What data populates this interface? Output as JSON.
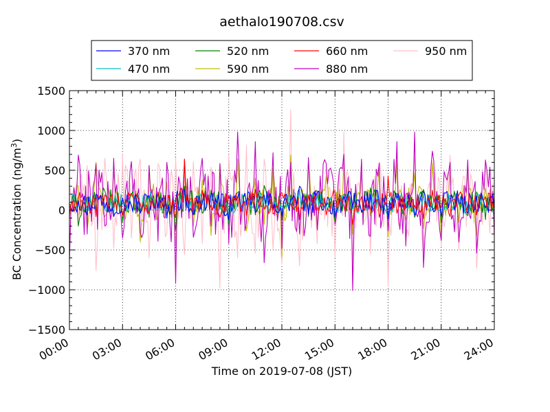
{
  "chart_data": {
    "type": "line",
    "title": "aethalo190708.csv",
    "xlabel": "Time on 2019-07-08 (JST)",
    "ylabel_main": "BC Concentration (ng/m",
    "ylabel_sup": "3",
    "ylabel_close": ")",
    "xlim_hours": [
      0,
      24
    ],
    "ylim": [
      -1500,
      1500
    ],
    "x_ticks": [
      {
        "hour": 0,
        "label": "00:00"
      },
      {
        "hour": 3,
        "label": "03:00"
      },
      {
        "hour": 6,
        "label": "06:00"
      },
      {
        "hour": 9,
        "label": "09:00"
      },
      {
        "hour": 12,
        "label": "12:00"
      },
      {
        "hour": 15,
        "label": "15:00"
      },
      {
        "hour": 18,
        "label": "18:00"
      },
      {
        "hour": 21,
        "label": "21:00"
      },
      {
        "hour": 24,
        "label": "24:00"
      }
    ],
    "y_ticks": [
      {
        "value": 1500,
        "label": "1500"
      },
      {
        "value": 1000,
        "label": "1000"
      },
      {
        "value": 500,
        "label": "500"
      },
      {
        "value": 0,
        "label": "0"
      },
      {
        "value": -500,
        "label": "−500"
      },
      {
        "value": -1000,
        "label": "−1000"
      },
      {
        "value": -1500,
        "label": "−1500"
      }
    ],
    "grid": true,
    "grid_style": "dotted",
    "legend_position": "top, above plot",
    "series": [
      {
        "name": "370 nm",
        "color": "#0000ff",
        "amplitude": 140,
        "x": [
          0,
          0.5,
          1,
          1.5,
          2,
          2.5,
          3,
          3.5,
          4,
          4.5,
          5,
          5.5,
          6,
          6.5,
          7,
          7.5,
          8,
          8.5,
          9,
          9.5,
          10,
          10.5,
          11,
          11.5,
          12,
          12.5,
          13,
          13.5,
          14,
          14.5,
          15,
          15.5,
          16,
          16.5,
          17,
          17.5,
          18,
          18.5,
          19,
          19.5,
          20,
          20.5,
          21,
          21.5,
          22,
          22.5,
          23,
          23.5,
          24
        ],
        "y": [
          50,
          120,
          -60,
          200,
          20,
          -80,
          150,
          60,
          -40,
          180,
          30,
          -100,
          130,
          250,
          -60,
          90,
          210,
          40,
          -120,
          160,
          70,
          -30,
          190,
          10,
          -70,
          140,
          300,
          -50,
          220,
          60,
          -90,
          170,
          30,
          -20,
          200,
          80,
          -110,
          150,
          40,
          -60,
          230,
          20,
          -80,
          140,
          90,
          -40,
          180,
          30,
          60
        ]
      },
      {
        "name": "470 nm",
        "color": "#00bfbf",
        "amplitude": 120,
        "x": [
          0,
          0.5,
          1,
          1.5,
          2,
          2.5,
          3,
          3.5,
          4,
          4.5,
          5,
          5.5,
          6,
          6.5,
          7,
          7.5,
          8,
          8.5,
          9,
          9.5,
          10,
          10.5,
          11,
          11.5,
          12,
          12.5,
          13,
          13.5,
          14,
          14.5,
          15,
          15.5,
          16,
          16.5,
          17,
          17.5,
          18,
          18.5,
          19,
          19.5,
          20,
          20.5,
          21,
          21.5,
          22,
          22.5,
          23,
          23.5,
          24
        ],
        "y": [
          30,
          100,
          -40,
          170,
          10,
          -60,
          130,
          50,
          -30,
          150,
          20,
          -80,
          110,
          220,
          -40,
          70,
          180,
          30,
          -100,
          140,
          60,
          -20,
          160,
          0,
          -50,
          120,
          260,
          -30,
          190,
          50,
          -70,
          150,
          20,
          -10,
          170,
          60,
          -90,
          130,
          30,
          -40,
          200,
          10,
          -60,
          120,
          70,
          -30,
          150,
          20,
          40
        ]
      },
      {
        "name": "520 nm",
        "color": "#008000",
        "amplitude": 150,
        "x": [
          0,
          0.5,
          1,
          1.5,
          2,
          2.5,
          3,
          3.5,
          4,
          4.5,
          5,
          5.5,
          6,
          6.5,
          7,
          7.5,
          8,
          8.5,
          9,
          9.5,
          10,
          10.5,
          11,
          11.5,
          12,
          12.5,
          13,
          13.5,
          14,
          14.5,
          15,
          15.5,
          16,
          16.5,
          17,
          17.5,
          18,
          18.5,
          19,
          19.5,
          20,
          20.5,
          21,
          21.5,
          22,
          22.5,
          23,
          23.5,
          24
        ],
        "y": [
          80,
          -200,
          160,
          -30,
          240,
          60,
          -150,
          190,
          20,
          -90,
          210,
          40,
          -250,
          300,
          70,
          -40,
          250,
          10,
          -180,
          220,
          90,
          -60,
          310,
          30,
          -120,
          190,
          260,
          -80,
          240,
          50,
          -140,
          200,
          60,
          -30,
          280,
          70,
          -100,
          210,
          20,
          -90,
          260,
          40,
          -150,
          180,
          110,
          -70,
          230,
          -120,
          90
        ]
      },
      {
        "name": "590 nm",
        "color": "#bfbf00",
        "amplitude": 200,
        "x": [
          0,
          0.5,
          1,
          1.5,
          2,
          2.5,
          3,
          3.5,
          4,
          4.5,
          5,
          5.5,
          6,
          6.5,
          7,
          7.5,
          8,
          8.5,
          9,
          9.5,
          10,
          10.5,
          11,
          11.5,
          12,
          12.5,
          13,
          13.5,
          14,
          14.5,
          15,
          15.5,
          16,
          16.5,
          17,
          17.5,
          18,
          18.5,
          19,
          19.5,
          20,
          20.5,
          21,
          21.5,
          22,
          22.5,
          23,
          23.5,
          24
        ],
        "y": [
          -100,
          300,
          -250,
          600,
          -80,
          480,
          -150,
          210,
          -400,
          560,
          -120,
          350,
          -450,
          640,
          -200,
          380,
          -320,
          590,
          -90,
          640,
          -260,
          400,
          -180,
          520,
          -590,
          690,
          -110,
          630,
          -240,
          420,
          -150,
          590,
          -300,
          470,
          -70,
          520,
          -330,
          590,
          -120,
          460,
          -230,
          590,
          -360,
          520,
          -150,
          470,
          -320,
          280,
          -100
        ]
      },
      {
        "name": "660 nm",
        "color": "#ff0000",
        "amplitude": 120,
        "x": [
          0,
          0.5,
          1,
          1.5,
          2,
          2.5,
          3,
          3.5,
          4,
          4.5,
          5,
          5.5,
          6,
          6.5,
          7,
          7.5,
          8,
          8.5,
          9,
          9.5,
          10,
          10.5,
          11,
          11.5,
          12,
          12.5,
          13,
          13.5,
          14,
          14.5,
          15,
          15.5,
          16,
          16.5,
          17,
          17.5,
          18,
          18.5,
          19,
          19.5,
          20,
          20.5,
          21,
          21.5,
          22,
          22.5,
          23,
          23.5,
          24
        ],
        "y": [
          -50,
          160,
          40,
          -80,
          190,
          30,
          -60,
          210,
          80,
          -40,
          230,
          20,
          -100,
          640,
          -30,
          250,
          60,
          -90,
          180,
          40,
          -70,
          260,
          10,
          -50,
          220,
          80,
          -120,
          190,
          30,
          -60,
          240,
          50,
          -180,
          170,
          20,
          -90,
          430,
          -40,
          200,
          60,
          -110,
          250,
          30,
          -80,
          190,
          50,
          -60,
          170,
          20
        ]
      },
      {
        "name": "880 nm",
        "color": "#bf00bf",
        "amplitude": 450,
        "x": [
          0,
          0.5,
          1,
          1.5,
          2,
          2.5,
          3,
          3.5,
          4,
          4.5,
          5,
          5.5,
          6,
          6.5,
          7,
          7.5,
          8,
          8.5,
          9,
          9.5,
          10,
          10.5,
          11,
          11.5,
          12,
          12.5,
          13,
          13.5,
          14,
          14.5,
          15,
          15.5,
          16,
          16.5,
          17,
          17.5,
          18,
          18.5,
          19,
          19.5,
          20,
          20.5,
          21,
          21.5,
          22,
          22.5,
          23,
          23.5,
          24
        ],
        "y": [
          -640,
          690,
          -300,
          580,
          -200,
          650,
          -350,
          610,
          -280,
          560,
          -390,
          600,
          -920,
          640,
          -340,
          650,
          -200,
          580,
          -420,
          980,
          -150,
          860,
          -660,
          720,
          -480,
          600,
          -300,
          660,
          -250,
          590,
          -180,
          700,
          -1010,
          640,
          -330,
          590,
          -260,
          860,
          -450,
          980,
          -720,
          740,
          -380,
          600,
          -400,
          630,
          -540,
          630,
          -310
        ]
      },
      {
        "name": "950 nm",
        "color": "#ffc0cb",
        "amplitude": 400,
        "x": [
          0,
          0.5,
          1,
          1.5,
          2,
          2.5,
          3,
          3.5,
          4,
          4.5,
          5,
          5.5,
          6,
          6.5,
          7,
          7.5,
          8,
          8.5,
          9,
          9.5,
          10,
          10.5,
          11,
          11.5,
          12,
          12.5,
          13,
          13.5,
          14,
          14.5,
          15,
          15.5,
          16,
          16.5,
          17,
          17.5,
          18,
          18.5,
          19,
          19.5,
          20,
          20.5,
          21,
          21.5,
          22,
          22.5,
          23,
          23.5,
          24
        ],
        "y": [
          300,
          -200,
          560,
          -760,
          650,
          -480,
          700,
          -350,
          640,
          -600,
          580,
          -300,
          660,
          -560,
          610,
          -420,
          540,
          -980,
          690,
          -600,
          810,
          -540,
          640,
          -490,
          -680,
          1260,
          -700,
          600,
          -420,
          560,
          -600,
          980,
          -760,
          630,
          -550,
          600,
          -960,
          700,
          -380,
          650,
          -560,
          620,
          -460,
          690,
          -500,
          620,
          -730,
          590,
          -400
        ]
      }
    ]
  }
}
